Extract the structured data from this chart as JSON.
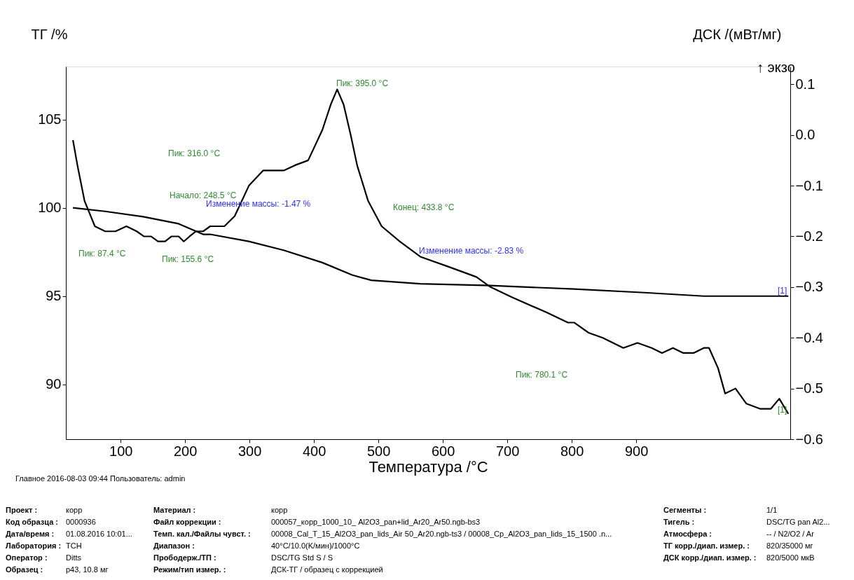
{
  "chart_data": {
    "type": "line",
    "xlabel": "Температура /°C",
    "ylabel": "ТГ /%",
    "y2label": "ДСК /(мВт/мг)",
    "xlim": [
      15,
      1139
    ],
    "xticks": [
      100,
      200,
      300,
      400,
      500,
      600,
      700,
      800,
      900
    ],
    "ylim": [
      86.9,
      108.0
    ],
    "yticks": [
      90,
      95,
      100,
      105
    ],
    "y2lim": [
      -0.6,
      0.135
    ],
    "y2ticks": [
      -0.6,
      -0.5,
      -0.4,
      -0.3,
      -0.2,
      -0.1,
      {
        "value": 0,
        "label": "0.0"
      },
      0.1
    ],
    "grid": false,
    "line_style": "solid",
    "marker": "none",
    "series": [
      {
        "color": "#000000",
        "x": [
          26,
          76,
          135,
          190,
          228,
          239,
          299,
          353,
          413,
          459,
          489,
          565,
          674,
          804,
          913,
          1005,
          1136
        ],
        "values": [
          100.0,
          99.8,
          99.5,
          99.1,
          98.5,
          98.5,
          98.1,
          97.6,
          96.9,
          96.2,
          95.9,
          95.7,
          95.6,
          95.4,
          95.2,
          95.0,
          95.0
        ]
      },
      {
        "color": "#000000",
        "axis": "y2",
        "x": [
          26,
          33,
          44,
          60,
          76,
          92,
          109,
          125,
          136,
          147,
          158,
          169,
          179,
          190,
          198,
          207,
          217,
          228,
          239,
          261,
          277,
          299,
          321,
          342,
          353,
          370,
          391,
          413,
          426,
          436,
          446,
          457,
          467,
          484,
          505,
          533,
          565,
          609,
          652,
          674,
          707,
          761,
          794,
          804,
          826,
          848,
          880,
          902,
          924,
          940,
          957,
          973,
          989,
          1005,
          1013,
          1027,
          1038,
          1054,
          1071,
          1092,
          1109,
          1122,
          1136
        ],
        "values": [
          -0.01,
          -0.06,
          -0.13,
          -0.18,
          -0.19,
          -0.19,
          -0.18,
          -0.19,
          -0.2,
          -0.2,
          -0.21,
          -0.21,
          -0.2,
          -0.2,
          -0.21,
          -0.2,
          -0.19,
          -0.19,
          -0.18,
          -0.18,
          -0.16,
          -0.1,
          -0.07,
          -0.07,
          -0.07,
          -0.06,
          -0.05,
          0.01,
          0.06,
          0.09,
          0.06,
          0.0,
          -0.06,
          -0.13,
          -0.18,
          -0.21,
          -0.24,
          -0.26,
          -0.28,
          -0.3,
          -0.32,
          -0.35,
          -0.37,
          -0.37,
          -0.39,
          -0.4,
          -0.42,
          -0.41,
          -0.42,
          -0.43,
          -0.42,
          -0.43,
          -0.43,
          -0.42,
          -0.42,
          -0.46,
          -0.51,
          -0.5,
          -0.53,
          -0.54,
          -0.54,
          -0.52,
          -0.55
        ]
      }
    ],
    "annotations": [
      "Пик: 395.0 °C",
      "Пик: 316.0 °C",
      "Начало: 248.5 °C",
      "Изменение массы: -1.47 %",
      "Конец: 433.8 °C",
      "Изменение массы: -2.83 %",
      "Пик: 87.4 °C",
      "Пик: 155.6 °C",
      "Пик: 780.1 °C",
      "[1]",
      "[1]",
      "↑ экзо",
      "Главное   2016-08-03 09:44   Пользователь: admin",
      "Проект :",
      "корр",
      "Код образца :",
      "0000936",
      "Дата/время :",
      "01.08.2016 10:01...",
      "Лаборатория :",
      "TCH",
      "Оператор :",
      "Ditts",
      "Образец :",
      "p43, 10.8 мг",
      "Материал :",
      "корр",
      "Файл коррекции :",
      "000057_корр_1000_10_ Al2O3_pan+lid_Ar20_Ar50.ngb-bs3",
      "Темп. кал./Файлы чувст. :",
      "00008_Cal_T_15_Al2O3_pan_lids_Air 50_Ar20.ngb-ts3 / 00008_Cp_Al2O3_pan_lids_15_1500 .n...",
      "Диапазон :",
      "40°C/10.0(K/мин)/1000°C",
      "Прободерж./ТП :",
      "DSC/TG Std S / S",
      "Режим/тип измер. :",
      "ДСК-ТГ / образец с коррекцией",
      "Сегменты :",
      "1/1",
      "Тигель :",
      "DSC/TG pan Al2...",
      "Атмосфера :",
      "-- / N2/O2 / Ar",
      "ТГ корр./диап. измер. :",
      "820/35000 мг",
      "ДСК корр./диап. измер. :",
      "820/5000 мкВ"
    ]
  }
}
